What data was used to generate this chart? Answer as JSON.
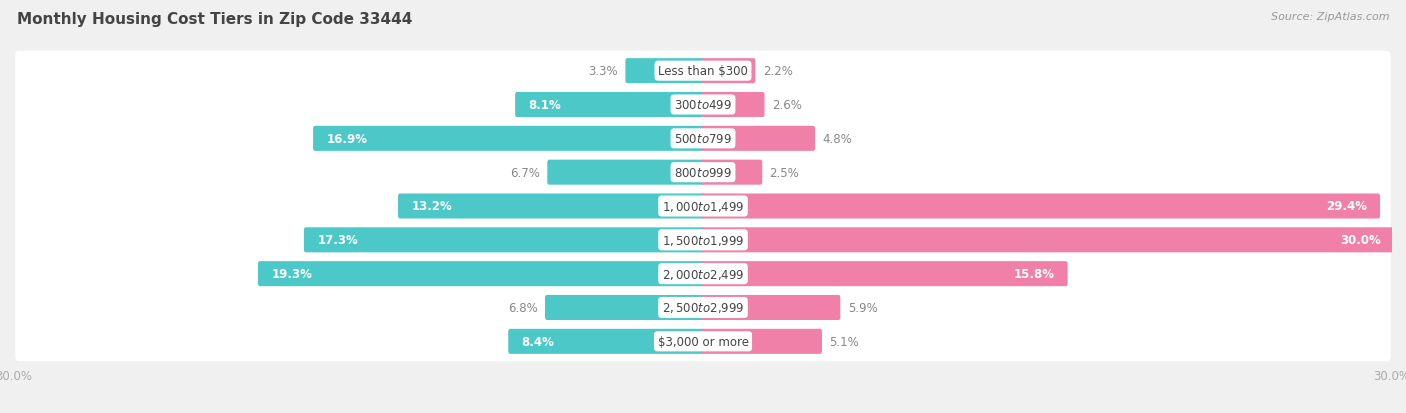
{
  "title": "Monthly Housing Cost Tiers in Zip Code 33444",
  "source": "Source: ZipAtlas.com",
  "categories": [
    "Less than $300",
    "$300 to $499",
    "$500 to $799",
    "$800 to $999",
    "$1,000 to $1,499",
    "$1,500 to $1,999",
    "$2,000 to $2,499",
    "$2,500 to $2,999",
    "$3,000 or more"
  ],
  "owner_values": [
    3.3,
    8.1,
    16.9,
    6.7,
    13.2,
    17.3,
    19.3,
    6.8,
    8.4
  ],
  "renter_values": [
    2.2,
    2.6,
    4.8,
    2.5,
    29.4,
    30.0,
    15.8,
    5.9,
    5.1
  ],
  "owner_color": "#4DC8C8",
  "renter_color": "#F080A8",
  "row_bg_color": "#FFFFFF",
  "fig_bg_color": "#F0F0F0",
  "xlim": 30.0,
  "bar_height": 0.58,
  "label_fontsize": 8.5,
  "cat_fontsize": 8.5,
  "title_fontsize": 11,
  "source_fontsize": 8,
  "legend_fontsize": 9,
  "owner_inside_threshold": 8.0,
  "renter_inside_threshold": 8.0,
  "axis_label_color": "#AAAAAA",
  "outside_label_color": "#888888",
  "inside_label_color": "#FFFFFF",
  "cat_label_color": "#444444",
  "title_color": "#444444"
}
